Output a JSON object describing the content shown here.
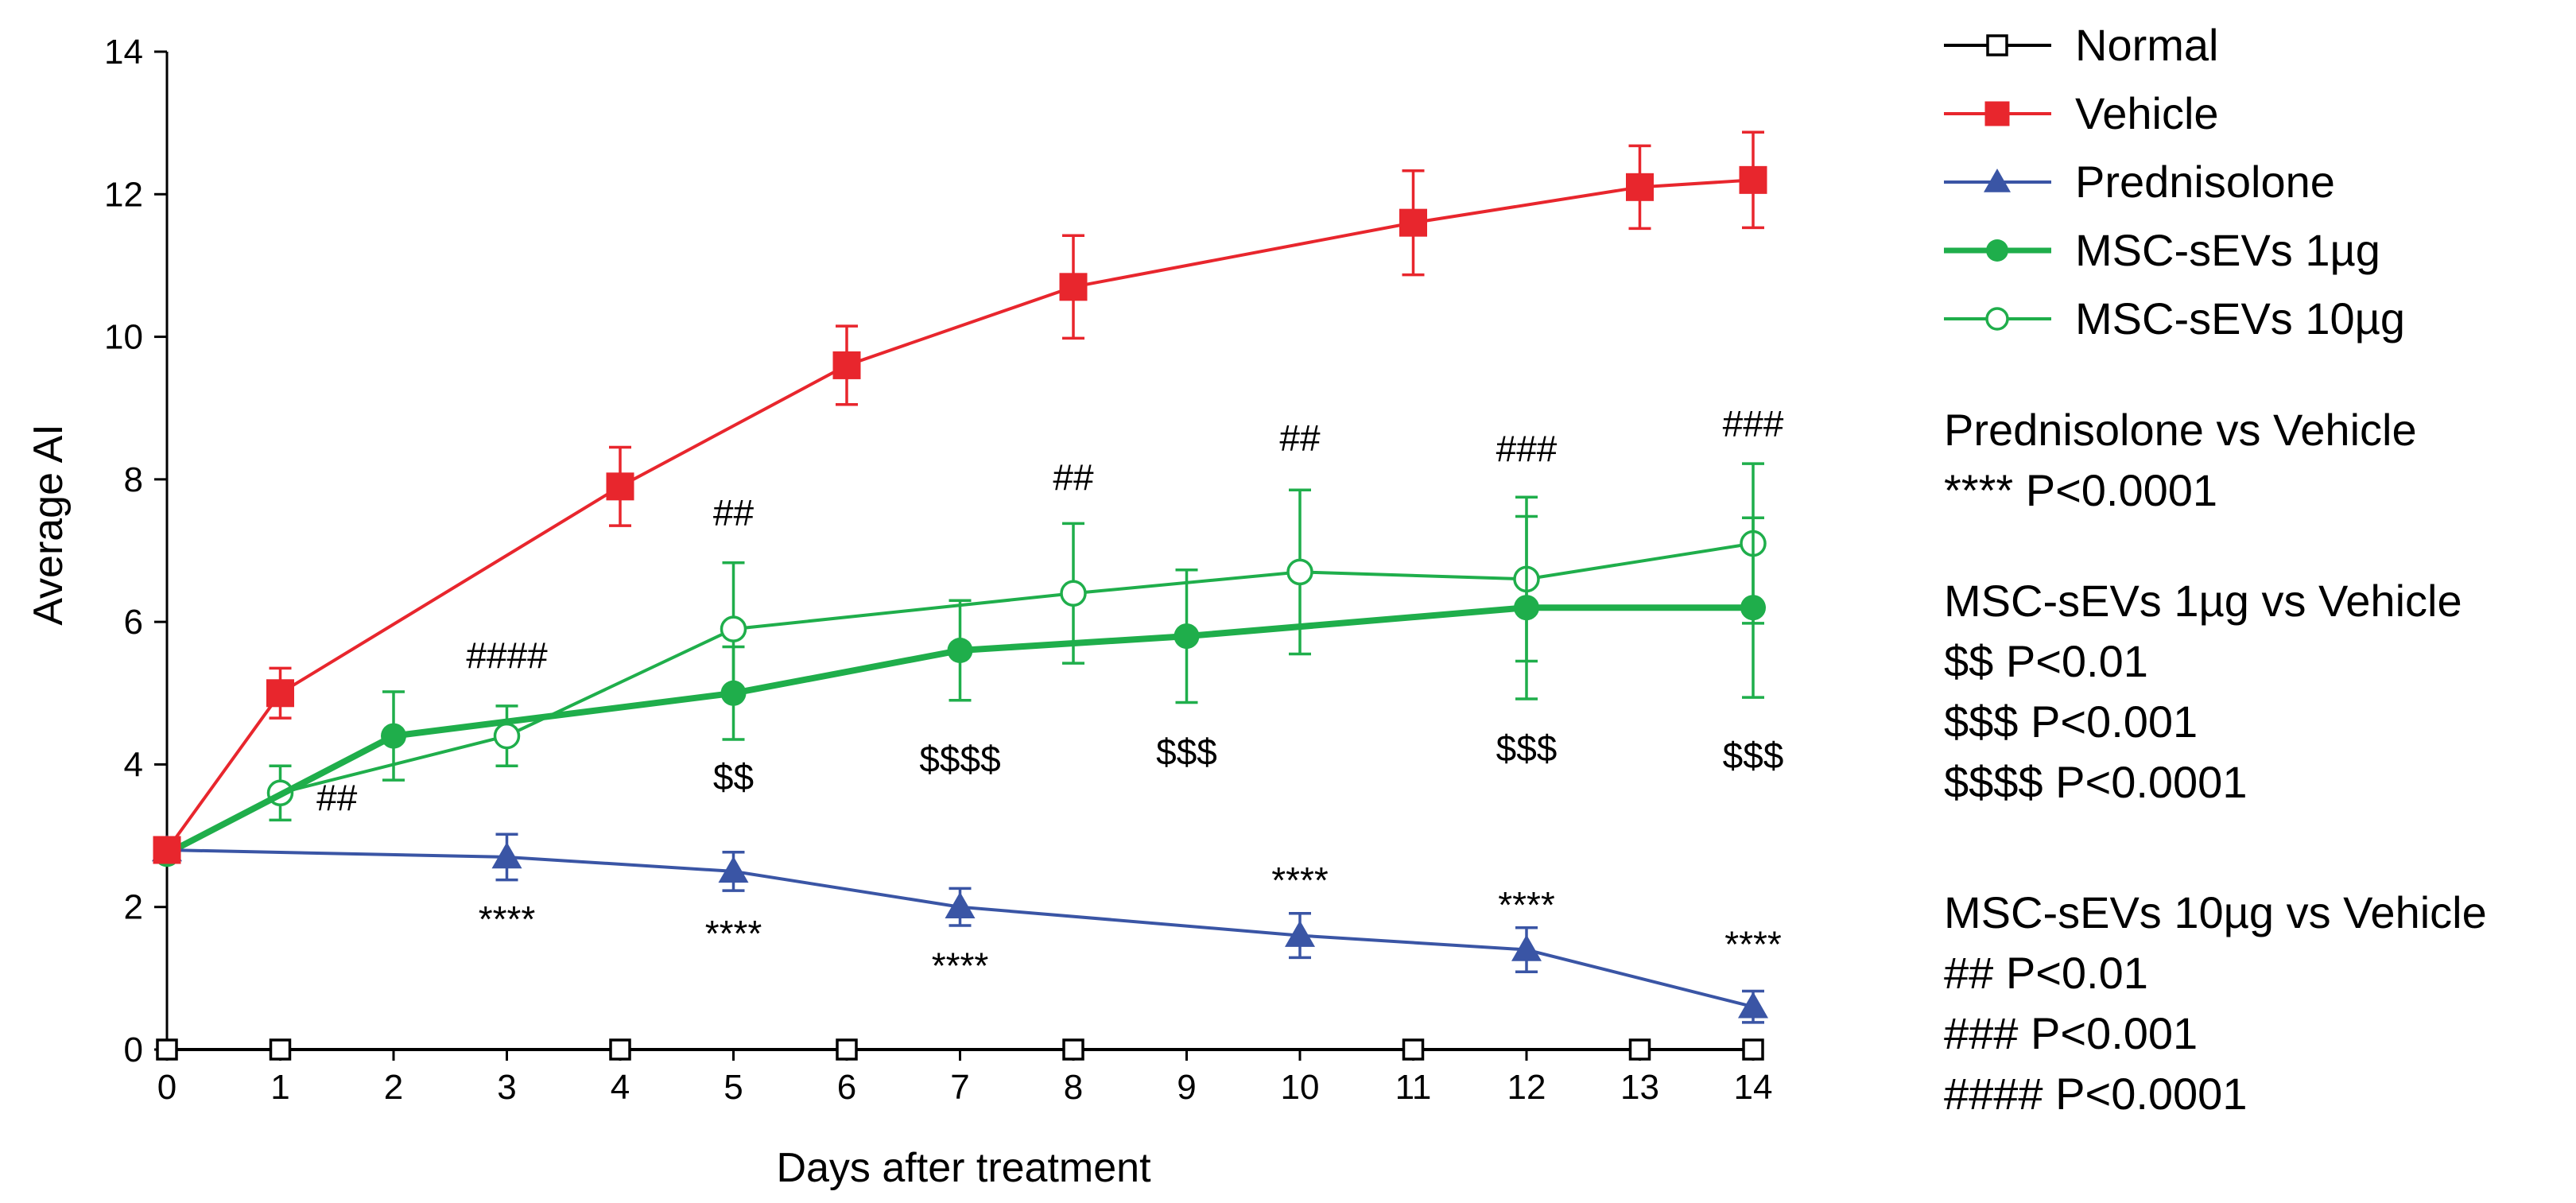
{
  "chart_data": {
    "type": "line",
    "title": "",
    "xlabel": "Days after treatment",
    "ylabel": "Average AI",
    "xlim": [
      0,
      14
    ],
    "ylim": [
      0,
      14
    ],
    "x_ticks": [
      0,
      1,
      2,
      3,
      4,
      5,
      6,
      7,
      8,
      9,
      10,
      11,
      12,
      13,
      14
    ],
    "y_ticks": [
      0,
      2,
      4,
      6,
      8,
      10,
      12,
      14
    ],
    "grid": false,
    "legend_position": "right",
    "series": [
      {
        "name": "Normal",
        "color": "#000000",
        "marker": "open-square",
        "x": [
          0,
          1,
          4,
          6,
          8,
          11,
          13,
          14
        ],
        "values": [
          0,
          0,
          0,
          0,
          0,
          0,
          0,
          0
        ],
        "errors": []
      },
      {
        "name": "Vehicle",
        "color": "#e8262d",
        "marker": "filled-square",
        "x": [
          0,
          1,
          4,
          6,
          8,
          11,
          13,
          14
        ],
        "values": [
          2.8,
          5.0,
          7.9,
          9.6,
          10.7,
          11.6,
          12.1,
          12.2
        ],
        "errors": [
          0.1,
          0.35,
          0.55,
          0.55,
          0.72,
          0.73,
          0.58,
          0.67
        ]
      },
      {
        "name": "Prednisolone",
        "color": "#3a55a5",
        "marker": "filled-triangle",
        "x": [
          0,
          3,
          5,
          7,
          10,
          12,
          14
        ],
        "values": [
          2.8,
          2.7,
          2.5,
          2.0,
          1.6,
          1.4,
          0.6
        ],
        "errors": [
          0.1,
          0.32,
          0.27,
          0.26,
          0.31,
          0.31,
          0.22
        ]
      },
      {
        "name": "MSC-sEVs 1µg",
        "color": "#1fae4b",
        "marker": "filled-circle",
        "x": [
          0,
          2,
          5,
          7,
          9,
          12,
          14
        ],
        "values": [
          2.75,
          4.4,
          5.0,
          5.6,
          5.8,
          6.2,
          6.2
        ],
        "errors": [
          0.1,
          0.62,
          0.65,
          0.7,
          0.93,
          1.28,
          1.26
        ]
      },
      {
        "name": "MSC-sEVs 10µg",
        "color": "#1fae4b",
        "marker": "open-circle",
        "x": [
          0,
          1,
          3,
          5,
          8,
          10,
          12,
          14
        ],
        "values": [
          2.75,
          3.6,
          4.4,
          5.9,
          6.4,
          6.7,
          6.6,
          7.1
        ],
        "errors": [
          0.1,
          0.38,
          0.42,
          0.93,
          0.98,
          1.15,
          1.15,
          1.12
        ]
      }
    ],
    "annotations": [
      {
        "text": "##",
        "x": 1.5,
        "y": 3.35
      },
      {
        "text": "####",
        "x": 3,
        "y": 5.35
      },
      {
        "text": "##",
        "x": 5,
        "y": 7.35
      },
      {
        "text": "##",
        "x": 8,
        "y": 7.85
      },
      {
        "text": "##",
        "x": 10,
        "y": 8.4
      },
      {
        "text": "###",
        "x": 12,
        "y": 8.25
      },
      {
        "text": "###",
        "x": 14,
        "y": 8.6
      },
      {
        "text": "$$",
        "x": 5,
        "y": 3.65
      },
      {
        "text": "$$$$",
        "x": 7,
        "y": 3.9
      },
      {
        "text": "$$$",
        "x": 9,
        "y": 4.0
      },
      {
        "text": "$$$",
        "x": 12,
        "y": 4.05
      },
      {
        "text": "$$$",
        "x": 14,
        "y": 3.95
      },
      {
        "text": "****",
        "x": 3,
        "y": 1.65
      },
      {
        "text": "****",
        "x": 5,
        "y": 1.45
      },
      {
        "text": "****",
        "x": 7,
        "y": 1.0
      },
      {
        "text": "****",
        "x": 10,
        "y": 2.2
      },
      {
        "text": "****",
        "x": 12,
        "y": 1.85
      },
      {
        "text": "****",
        "x": 14,
        "y": 1.3
      }
    ],
    "notes": [
      {
        "heading": "Prednisolone vs Vehicle",
        "lines": [
          "**** P<0.0001"
        ]
      },
      {
        "heading": "MSC-sEVs 1µg vs Vehicle",
        "lines": [
          "$$ P<0.01",
          "$$$ P<0.001",
          "$$$$ P<0.0001"
        ]
      },
      {
        "heading": "MSC-sEVs 10µg vs Vehicle",
        "lines": [
          "## P<0.01",
          "### P<0.001",
          "#### P<0.0001"
        ]
      }
    ]
  }
}
